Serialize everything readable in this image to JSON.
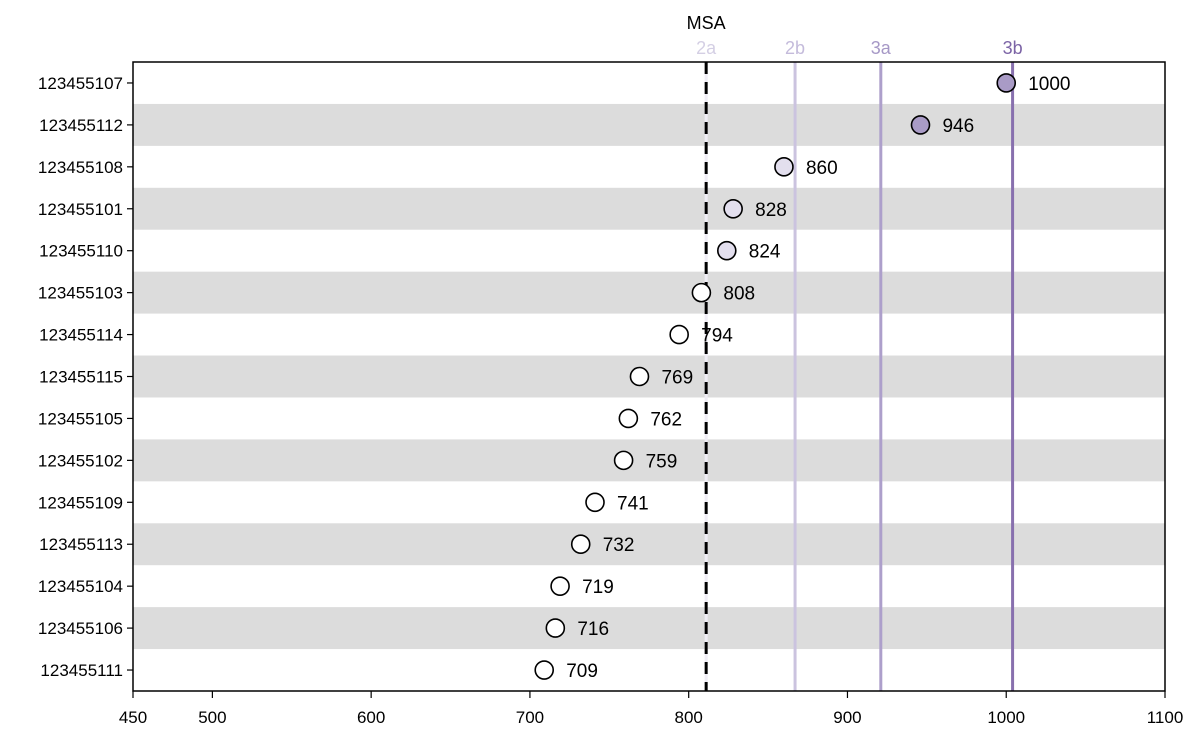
{
  "chart_data": {
    "type": "scatter",
    "orientation": "horizontal-dot-plot",
    "title": "",
    "xlabel": "",
    "ylabel": "",
    "xlim": [
      450,
      1100
    ],
    "x_ticks": [
      450,
      500,
      600,
      700,
      800,
      900,
      1000,
      1100
    ],
    "grid": false,
    "row_banding": true,
    "band_color": "#dcdcdc",
    "categories": [
      "123455107",
      "123455112",
      "123455108",
      "123455101",
      "123455110",
      "123455103",
      "123455114",
      "123455115",
      "123455105",
      "123455102",
      "123455109",
      "123455113",
      "123455104",
      "123455106",
      "123455111"
    ],
    "values": [
      1000,
      946,
      860,
      828,
      824,
      808,
      794,
      769,
      762,
      759,
      741,
      732,
      719,
      716,
      709
    ],
    "point_fills": [
      "#a99bc6",
      "#a99bc6",
      "#e3dfee",
      "#e3dfee",
      "#e3dfee",
      "#ffffff",
      "#ffffff",
      "#ffffff",
      "#ffffff",
      "#ffffff",
      "#ffffff",
      "#ffffff",
      "#ffffff",
      "#ffffff",
      "#ffffff"
    ],
    "reference_lines": [
      {
        "label": "MSA",
        "x": 811,
        "style": "dashed",
        "color": "#000000",
        "label_color": "#000000"
      },
      {
        "label": "2a",
        "x": 811,
        "style": "solid",
        "color": "#efedf5",
        "label_color": "#d4cfe4"
      },
      {
        "label": "2b",
        "x": 867,
        "style": "solid",
        "color": "#cbc3df",
        "label_color": "#c4bbdb"
      },
      {
        "label": "3a",
        "x": 921,
        "style": "solid",
        "color": "#ad9fcb",
        "label_color": "#a698c6"
      },
      {
        "label": "3b",
        "x": 1004,
        "style": "solid",
        "color": "#8870ae",
        "label_color": "#7c64a6"
      }
    ]
  }
}
